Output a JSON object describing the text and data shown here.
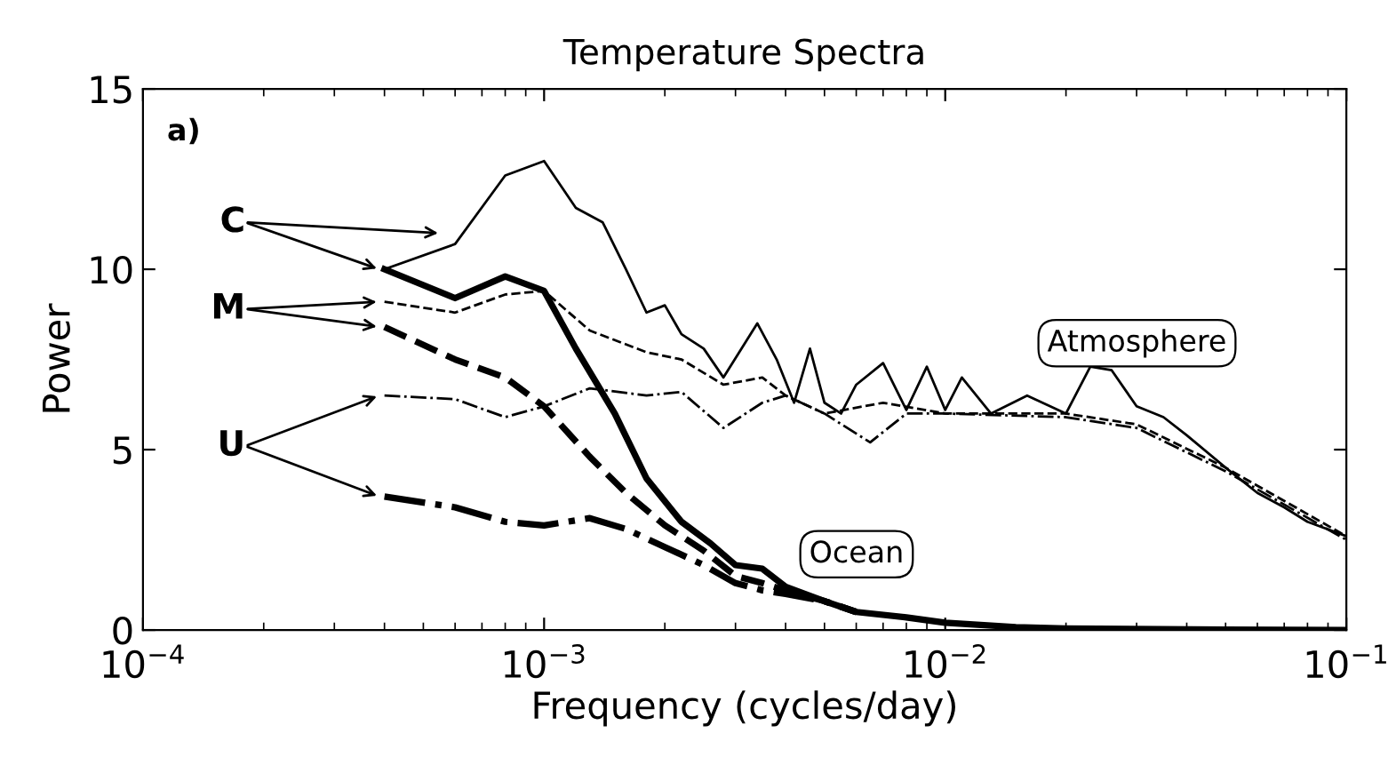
{
  "chart_data": {
    "type": "line",
    "title": "Temperature Spectra",
    "xlabel": "Frequency (cycles/day)",
    "ylabel": "Power",
    "log": "x",
    "grid": false,
    "legend": false,
    "xlim": [
      0.0001,
      0.1
    ],
    "xticks": [
      {
        "value": 0.0001,
        "label": "10$^{−4}$"
      },
      {
        "value": 0.001,
        "label": "10$^{−3}$"
      },
      {
        "value": 0.01,
        "label": "10$^{−2}$"
      },
      {
        "value": 0.1,
        "label": "10$^{−1}$"
      }
    ],
    "ylim": [
      0,
      15
    ],
    "yticks": [
      0,
      5,
      10,
      15
    ],
    "annotations": [
      "a)",
      "C",
      "M",
      "U",
      "Atmosphere",
      "Ocean"
    ],
    "series": [
      {
        "color": "#000000",
        "line_style": "solid",
        "x": [
          0.0004,
          0.0006,
          0.0008,
          0.001,
          0.0012,
          0.0014,
          0.0016,
          0.0018,
          0.002,
          0.0022,
          0.0025,
          0.0028,
          0.0034,
          0.0038,
          0.0042,
          0.0046,
          0.005,
          0.0055,
          0.006,
          0.007,
          0.008,
          0.009,
          0.01,
          0.011,
          0.013,
          0.016,
          0.02,
          0.023,
          0.026,
          0.03,
          0.035,
          0.04,
          0.05,
          0.06,
          0.07,
          0.08,
          0.1
        ],
        "values": [
          10,
          10.7,
          12.6,
          13,
          11.7,
          11.3,
          10,
          8.8,
          9,
          8.2,
          7.8,
          7,
          8.5,
          7.5,
          6.3,
          7.8,
          6.3,
          6,
          6.8,
          7.4,
          6.1,
          7.3,
          6.1,
          7,
          6,
          6.5,
          6,
          7.3,
          7.2,
          6.2,
          5.9,
          5.4,
          4.5,
          3.8,
          3.4,
          3,
          2.6
        ]
      },
      {
        "color": "#000000",
        "line_style": "dashed",
        "x": [
          0.0004,
          0.0006,
          0.0008,
          0.001,
          0.0013,
          0.0018,
          0.0022,
          0.0028,
          0.0035,
          0.004,
          0.005,
          0.007,
          0.01,
          0.02,
          0.03,
          0.05,
          0.1
        ],
        "values": [
          9.1,
          8.8,
          9.3,
          9.4,
          8.3,
          7.7,
          7.5,
          6.8,
          7,
          6.5,
          6,
          6.3,
          6,
          6,
          5.7,
          4.5,
          2.6
        ]
      },
      {
        "color": "#000000",
        "line_style": "dashdot",
        "x": [
          0.0004,
          0.0006,
          0.0008,
          0.001,
          0.0013,
          0.0018,
          0.0022,
          0.0028,
          0.0035,
          0.004,
          0.005,
          0.0065,
          0.008,
          0.01,
          0.02,
          0.03,
          0.05,
          0.1
        ],
        "values": [
          6.5,
          6.4,
          5.9,
          6.2,
          6.7,
          6.5,
          6.6,
          5.6,
          6.3,
          6.5,
          6,
          5.2,
          6,
          6,
          5.9,
          5.6,
          4.4,
          2.5
        ]
      },
      {
        "color": "#000000",
        "line_style": "solid",
        "x": [
          0.0004,
          0.0006,
          0.0008,
          0.001,
          0.0012,
          0.0015,
          0.0018,
          0.0022,
          0.0026,
          0.003,
          0.0035,
          0.004,
          0.005,
          0.006,
          0.008,
          0.01,
          0.015,
          0.02,
          0.05,
          0.1
        ],
        "values": [
          10,
          9.2,
          9.8,
          9.4,
          7.8,
          6,
          4.2,
          3,
          2.4,
          1.8,
          1.7,
          1.2,
          0.8,
          0.5,
          0.35,
          0.2,
          0.08,
          0.04,
          0.01,
          0
        ]
      },
      {
        "color": "#000000",
        "line_style": "dashed",
        "x": [
          0.0004,
          0.0006,
          0.0008,
          0.001,
          0.0013,
          0.0016,
          0.002,
          0.0025,
          0.003,
          0.0035,
          0.004,
          0.005,
          0.006
        ],
        "values": [
          8.4,
          7.5,
          7,
          6.2,
          4.8,
          3.8,
          2.9,
          2.2,
          1.5,
          1.3,
          1.1,
          0.8,
          0.5
        ]
      },
      {
        "color": "#000000",
        "line_style": "dashdot",
        "x": [
          0.0004,
          0.0006,
          0.0008,
          0.001,
          0.0013,
          0.0016,
          0.002,
          0.0025,
          0.003,
          0.0035,
          0.004,
          0.005,
          0.006
        ],
        "values": [
          3.7,
          3.4,
          3,
          2.9,
          3.1,
          2.8,
          2.3,
          1.8,
          1.3,
          1.1,
          1,
          0.8,
          0.5
        ]
      }
    ]
  }
}
